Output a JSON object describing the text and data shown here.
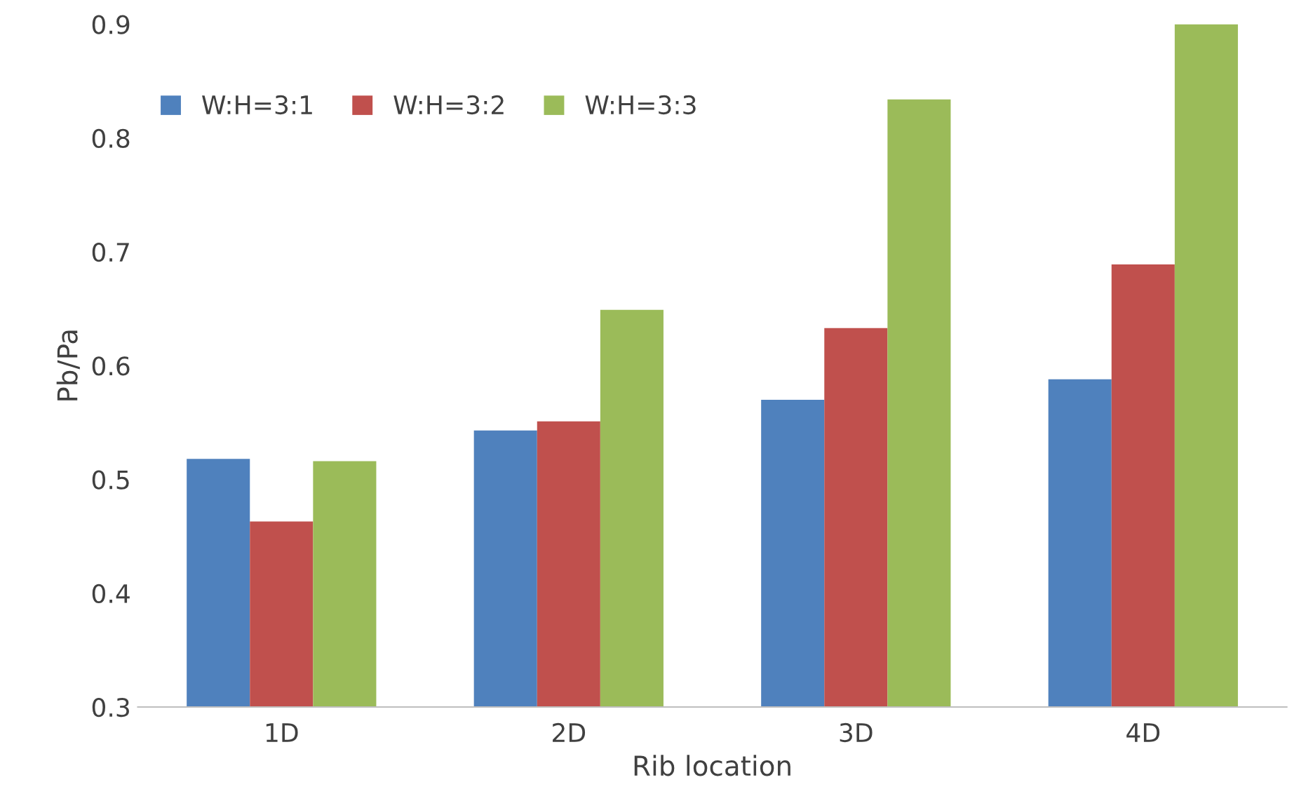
{
  "chart_data": {
    "type": "bar",
    "xlabel": "Rib location",
    "ylabel": "Pb/Pa",
    "categories": [
      "1D",
      "2D",
      "3D",
      "4D"
    ],
    "series": [
      {
        "name": "W:H=3:1",
        "color": "#4f81bd",
        "values": [
          0.518,
          0.543,
          0.57,
          0.588
        ]
      },
      {
        "name": "W:H=3:2",
        "color": "#c0504d",
        "values": [
          0.463,
          0.551,
          0.633,
          0.689
        ]
      },
      {
        "name": "W:H=3:3",
        "color": "#9bbb59",
        "values": [
          0.516,
          0.649,
          0.834,
          0.9
        ]
      }
    ],
    "ylim": [
      0.3,
      0.9
    ],
    "yticks": [
      0.3,
      0.4,
      0.5,
      0.6,
      0.7,
      0.8,
      0.9
    ],
    "grid": false,
    "legend": "top left"
  }
}
